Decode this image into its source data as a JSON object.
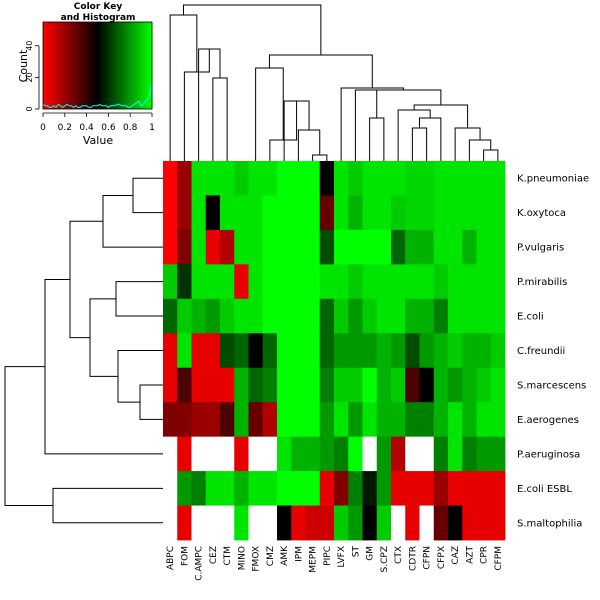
{
  "chart_data": {
    "type": "heatmap",
    "key": {
      "title_line1": "Color Key",
      "title_line2": "and Histogram",
      "xlabel": "Value",
      "ylabel": "Count",
      "xticks": [
        "0",
        "0.2",
        "0.4",
        "0.6",
        "0.8",
        "1"
      ],
      "yticks": [
        "0",
        "20",
        "40"
      ],
      "histogram_color": "#00ffff",
      "ylim": [
        0,
        55
      ],
      "histogram_values": [
        3,
        2,
        2,
        1,
        1,
        2,
        1,
        3,
        2,
        1,
        2,
        3,
        2,
        2,
        1,
        2,
        1,
        1,
        2,
        2,
        2,
        1,
        1,
        2,
        2,
        2,
        3,
        2,
        2,
        2,
        1,
        2,
        2,
        2,
        3,
        3,
        2,
        2,
        2,
        1,
        1,
        2,
        3,
        4,
        5,
        2,
        3,
        5,
        6,
        10,
        17
      ]
    },
    "columns": [
      "ABPC",
      "FOM",
      "C.AMPC",
      "CEZ",
      "CTM",
      "MINO",
      "FMOX",
      "CMZ",
      "AMK",
      "IPM",
      "MEPM",
      "PIPC",
      "LVFX",
      "ST",
      "GM",
      "S.CPZ",
      "CTX",
      "CDTR",
      "CFPN",
      "CFPX",
      "CAZ",
      "AZT",
      "CPR",
      "CFPM"
    ],
    "rows": [
      "K.pneumoniae",
      "K.oxytoca",
      "P.vulgaris",
      "P.mirabilis",
      "E.coli",
      "C.freundii",
      "S.marcescens",
      "E.aerogenes",
      "P.aeruginosa",
      "E.coli ESBL",
      "S.maltophilia"
    ],
    "colors": {
      "low": "#ff0000",
      "mid": "#000000",
      "high": "#00ff00",
      "missing": "#ffffff"
    },
    "values": [
      [
        0.0,
        0.2,
        0.95,
        0.95,
        0.95,
        0.9,
        0.95,
        0.95,
        1,
        1,
        1,
        0.5,
        0.95,
        0.9,
        0.95,
        0.95,
        0.95,
        0.92,
        0.92,
        0.95,
        0.95,
        0.95,
        0.95,
        0.95
      ],
      [
        0.0,
        0.2,
        0.95,
        0.5,
        0.95,
        0.95,
        0.95,
        1,
        1,
        1,
        1,
        0.3,
        0.95,
        0.85,
        0.95,
        0.95,
        0.9,
        0.92,
        0.92,
        0.95,
        0.95,
        0.95,
        0.95,
        0.95
      ],
      [
        0.0,
        0.25,
        0.95,
        0.05,
        0.15,
        0.95,
        0.95,
        1,
        1,
        1,
        1,
        0.65,
        1,
        1,
        1,
        1,
        0.7,
        0.85,
        0.85,
        0.95,
        0.95,
        0.85,
        0.95,
        0.95
      ],
      [
        0.9,
        0.6,
        0.95,
        0.95,
        0.95,
        0.05,
        0.95,
        1,
        1,
        1,
        1,
        0.95,
        0.95,
        0.9,
        0.95,
        0.95,
        0.95,
        0.95,
        0.95,
        0.9,
        0.95,
        0.95,
        0.95,
        0.95
      ],
      [
        0.7,
        0.9,
        0.85,
        0.8,
        0.9,
        0.95,
        0.95,
        1,
        1,
        1,
        1,
        0.7,
        0.9,
        0.8,
        0.9,
        0.95,
        0.95,
        0.85,
        0.85,
        0.75,
        0.95,
        0.95,
        0.95,
        0.95
      ],
      [
        0.05,
        0.95,
        0.05,
        0.05,
        0.65,
        0.7,
        0.5,
        0.7,
        1,
        1,
        1,
        0.7,
        0.8,
        0.8,
        0.8,
        0.85,
        0.8,
        0.65,
        0.8,
        0.85,
        0.9,
        0.85,
        0.85,
        0.9
      ],
      [
        0.05,
        0.35,
        0.05,
        0.05,
        0.05,
        0.85,
        0.7,
        0.75,
        1,
        1,
        1,
        0.75,
        0.9,
        0.9,
        1,
        0.85,
        0.9,
        0.35,
        0.5,
        0.85,
        0.8,
        0.85,
        0.9,
        0.95
      ],
      [
        0.25,
        0.25,
        0.2,
        0.2,
        0.35,
        0.85,
        0.3,
        0.15,
        1,
        1,
        1,
        0.8,
        0.95,
        0.8,
        0.95,
        0.85,
        0.85,
        0.75,
        0.75,
        0.85,
        0.95,
        0.85,
        0.95,
        0.95
      ],
      [
        null,
        0.05,
        null,
        null,
        null,
        0.05,
        null,
        null,
        0.95,
        0.85,
        0.85,
        0.8,
        0.75,
        1,
        null,
        0.8,
        0.15,
        null,
        null,
        0.75,
        0.95,
        0.75,
        0.8,
        0.8
      ],
      [
        null,
        0.8,
        0.75,
        0.95,
        0.95,
        0.85,
        0.95,
        0.95,
        1,
        1,
        1,
        0.05,
        0.25,
        0.75,
        0.55,
        0.8,
        0.05,
        0.05,
        0.05,
        0.2,
        0.05,
        0.05,
        0.05,
        0.05
      ],
      [
        null,
        0.05,
        null,
        null,
        null,
        0.95,
        null,
        null,
        0.5,
        0.05,
        0.1,
        0.1,
        0.9,
        0.8,
        0.5,
        0.9,
        null,
        0.05,
        null,
        0.3,
        0.5,
        0.05,
        0.05,
        0.05
      ]
    ]
  }
}
